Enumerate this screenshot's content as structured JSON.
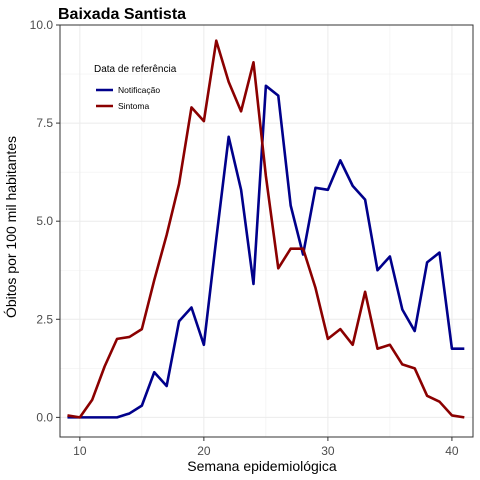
{
  "chart_data": {
    "type": "line",
    "title": "Baixada Santista",
    "xlabel": "Semana epidemiológica",
    "ylabel": "Óbitos por 100 mil habitantes",
    "xlim": [
      8.4,
      41.7
    ],
    "ylim": [
      -0.5,
      10.0
    ],
    "xticks": [
      10,
      20,
      30,
      40
    ],
    "xtick_labels": [
      "10",
      "20",
      "30",
      "40"
    ],
    "yticks": [
      0,
      2.5,
      5,
      7.5,
      10
    ],
    "ytick_labels": [
      "0.0",
      "2.5",
      "5.0",
      "7.5",
      "10.0"
    ],
    "grid": true,
    "legend": {
      "title": "Data de referência",
      "placement": "top-left"
    },
    "series": [
      {
        "name": "Notificação",
        "color": "#00008b",
        "x": [
          9,
          10,
          11,
          12,
          13,
          14,
          15,
          16,
          17,
          18,
          19,
          20,
          21,
          22,
          23,
          24,
          25,
          26,
          27,
          28,
          29,
          30,
          31,
          32,
          33,
          34,
          35,
          36,
          37,
          38,
          39,
          40,
          41
        ],
        "values": [
          0,
          0,
          0,
          0,
          0,
          0.1,
          0.3,
          1.15,
          0.8,
          2.45,
          2.8,
          1.85,
          4.55,
          7.15,
          5.8,
          3.4,
          8.45,
          8.2,
          5.4,
          4.15,
          5.85,
          5.8,
          6.55,
          5.9,
          5.55,
          3.75,
          4.1,
          2.75,
          2.2,
          3.95,
          4.2,
          1.75,
          1.75
        ]
      },
      {
        "name": "Sintoma",
        "color": "#8b0000",
        "x": [
          9,
          10,
          11,
          12,
          13,
          14,
          15,
          16,
          17,
          18,
          19,
          20,
          21,
          22,
          23,
          24,
          25,
          26,
          27,
          28,
          29,
          30,
          31,
          32,
          33,
          34,
          35,
          36,
          37,
          38,
          39,
          40,
          41
        ],
        "values": [
          0.05,
          0,
          0.45,
          1.3,
          2.0,
          2.05,
          2.25,
          3.5,
          4.65,
          5.95,
          7.9,
          7.55,
          9.6,
          8.55,
          7.8,
          9.05,
          6.15,
          3.8,
          4.3,
          4.3,
          3.3,
          2.0,
          2.25,
          1.85,
          3.2,
          1.75,
          1.85,
          1.35,
          1.25,
          0.55,
          0.4,
          0.05,
          0
        ]
      }
    ]
  }
}
